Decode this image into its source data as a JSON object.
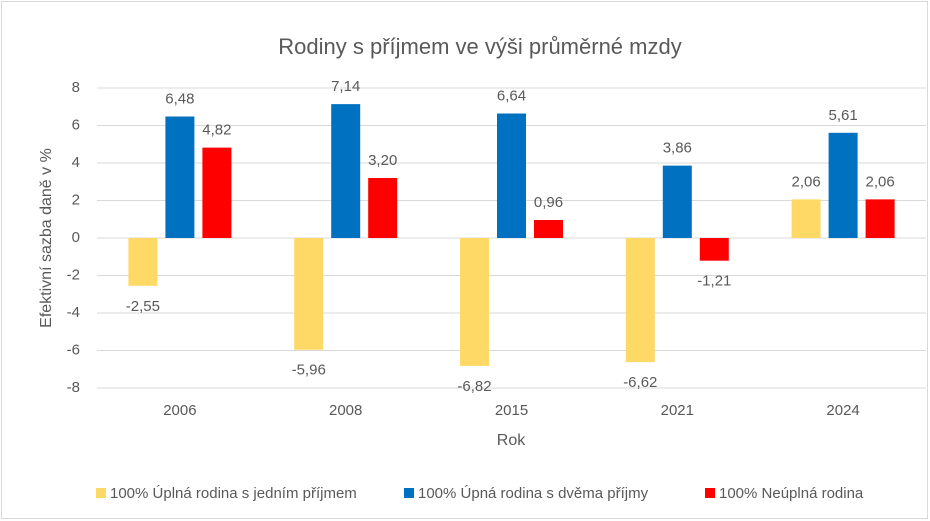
{
  "chart_data": {
    "type": "bar",
    "title": "Rodiny s příjmem ve výši průměrné mzdy",
    "x_label": "Rok",
    "y_label": "Efektivní sazba daně  v %",
    "categories": [
      "2006",
      "2008",
      "2015",
      "2021",
      "2024"
    ],
    "series": [
      {
        "name": "100% Úplná rodina s jedním příjmem",
        "color": "#FFD966",
        "values": [
          -2.55,
          -5.96,
          -6.82,
          -6.62,
          2.06
        ],
        "value_labels": [
          "-2,55",
          "-5,96",
          "-6,82",
          "-6,62",
          "2,06"
        ]
      },
      {
        "name": "100% Úpná rodina s dvěma příjmy",
        "color": "#0070C0",
        "values": [
          6.48,
          7.14,
          6.64,
          3.86,
          5.61
        ],
        "value_labels": [
          "6,48",
          "7,14",
          "6,64",
          "3,86",
          "5,61"
        ]
      },
      {
        "name": "100% Neúplná rodina",
        "color": "#FF0000",
        "values": [
          4.82,
          3.2,
          0.96,
          -1.21,
          2.06
        ],
        "value_labels": [
          "4,82",
          "3,20",
          "0,96",
          "-1,21",
          "2,06"
        ]
      }
    ],
    "ylim": [
      -8,
      8
    ],
    "yticks": [
      -8,
      -6,
      -4,
      -2,
      0,
      2,
      4,
      6,
      8
    ],
    "grid": true,
    "legend": "bottom"
  }
}
